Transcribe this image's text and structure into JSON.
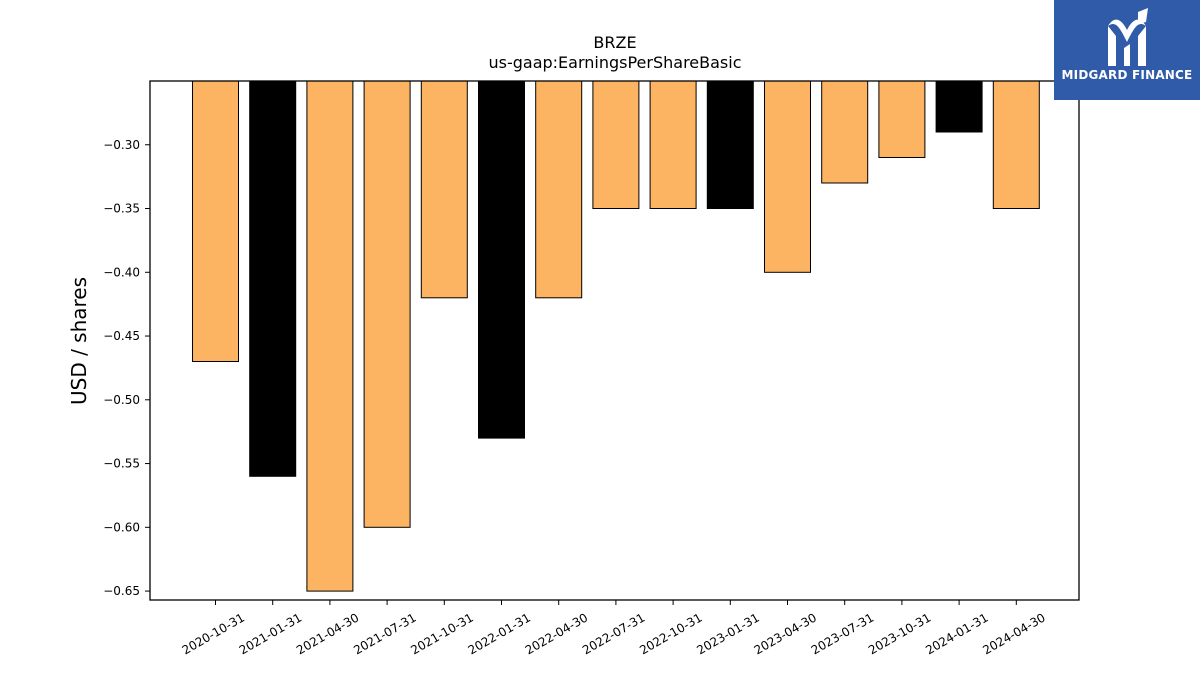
{
  "chart_data": {
    "type": "bar",
    "title": "BRZE",
    "subtitle": "us-gaap:EarningsPerShareBasic",
    "xlabel": "",
    "ylabel": "USD / shares",
    "categories": [
      "2020-10-31",
      "2021-01-31",
      "2021-04-30",
      "2021-07-31",
      "2021-10-31",
      "2022-01-31",
      "2022-04-30",
      "2022-07-31",
      "2022-10-31",
      "2023-01-31",
      "2023-04-30",
      "2023-07-31",
      "2023-10-31",
      "2024-01-31",
      "2024-04-30"
    ],
    "values": [
      -0.47,
      -0.56,
      -0.65,
      -0.6,
      -0.42,
      -0.53,
      -0.42,
      -0.35,
      -0.35,
      -0.35,
      -0.4,
      -0.33,
      -0.31,
      -0.29,
      -0.35
    ],
    "bar_colors": [
      "#fdb462",
      "#000000",
      "#fdb462",
      "#fdb462",
      "#fdb462",
      "#000000",
      "#fdb462",
      "#fdb462",
      "#fdb462",
      "#000000",
      "#fdb462",
      "#fdb462",
      "#fdb462",
      "#000000",
      "#fdb462"
    ],
    "yticks": [
      -0.3,
      -0.35,
      -0.4,
      -0.45,
      -0.5,
      -0.55,
      -0.6,
      -0.65
    ],
    "ytick_labels": [
      "−0.30",
      "−0.35",
      "−0.40",
      "−0.45",
      "−0.50",
      "−0.55",
      "−0.60",
      "−0.65"
    ],
    "ylim": [
      -0.657,
      -0.25
    ],
    "grid": false,
    "legend": "none"
  },
  "branding": {
    "logo_text": "MIDGARD FINANCE",
    "logo_color": "#2f5ba8"
  }
}
